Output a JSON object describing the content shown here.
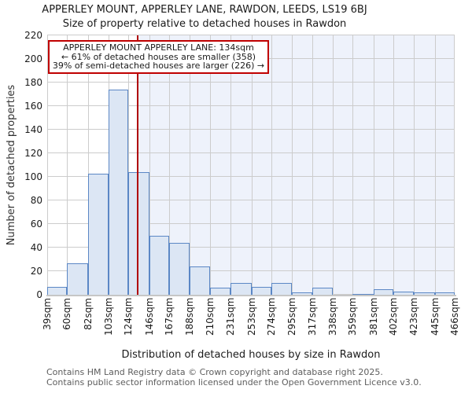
{
  "title": "APPERLEY MOUNT, APPERLEY LANE, RAWDON, LEEDS, LS19 6BJ",
  "subtitle": "Size of property relative to detached houses in Rawdon",
  "annotation": {
    "line1": "APPERLEY MOUNT APPERLEY LANE: 134sqm",
    "line2": "← 61% of detached houses are smaller (358)",
    "line3": "39% of semi-detached houses are larger (226) →"
  },
  "chart_data": {
    "type": "bar",
    "title": "APPERLEY MOUNT, APPERLEY LANE, RAWDON, LEEDS, LS19 6BJ",
    "subtitle": "Size of property relative to detached houses in Rawdon",
    "xlabel": "Distribution of detached houses by size in Rawdon",
    "ylabel": "Number of detached properties",
    "bin_edges": [
      39,
      60,
      82,
      103,
      124,
      146,
      167,
      188,
      210,
      231,
      253,
      274,
      295,
      317,
      338,
      359,
      381,
      402,
      423,
      445,
      466
    ],
    "x_tick_labels": [
      "39sqm",
      "60sqm",
      "82sqm",
      "103sqm",
      "124sqm",
      "146sqm",
      "167sqm",
      "188sqm",
      "210sqm",
      "231sqm",
      "253sqm",
      "274sqm",
      "295sqm",
      "317sqm",
      "338sqm",
      "359sqm",
      "381sqm",
      "402sqm",
      "423sqm",
      "445sqm",
      "466sqm"
    ],
    "values": [
      7,
      27,
      103,
      174,
      104,
      50,
      44,
      24,
      6,
      10,
      7,
      10,
      2,
      6,
      0,
      1,
      5,
      3,
      2,
      2
    ],
    "y_ticks": [
      0,
      20,
      40,
      60,
      80,
      100,
      120,
      140,
      160,
      180,
      200,
      220
    ],
    "ylim": [
      0,
      220
    ],
    "xlim": [
      39,
      466
    ],
    "grid": true,
    "legend": null,
    "marker": {
      "value": 134,
      "label": "134sqm"
    },
    "highlight_from": 134,
    "colors": {
      "bar_fill": "#dce6f4",
      "bar_edge": "#5b87c5",
      "marker_line": "#b00000",
      "annotation_border": "#c00000",
      "highlight_bg": "#eef2fb",
      "grid": "#cccccc"
    }
  },
  "footer": {
    "line1": "Contains HM Land Registry data © Crown copyright and database right 2025.",
    "line2": "Contains public sector information licensed under the Open Government Licence v3.0."
  }
}
